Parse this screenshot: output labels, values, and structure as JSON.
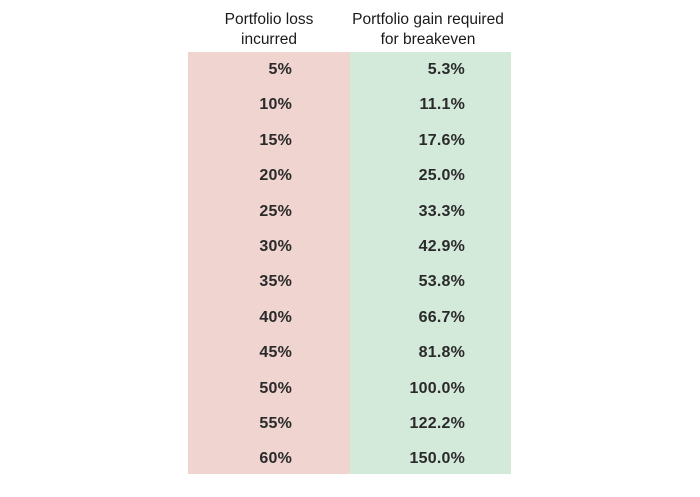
{
  "chart_data": {
    "type": "table",
    "columns": [
      "Portfolio loss incurred",
      "Portfolio gain required for breakeven"
    ],
    "header_lines": {
      "loss": [
        "Portfolio loss",
        "incurred"
      ],
      "gain": [
        "Portfolio gain required",
        "for breakeven"
      ]
    },
    "rows": [
      {
        "loss": "5%",
        "gain": "5.3%"
      },
      {
        "loss": "10%",
        "gain": "11.1%"
      },
      {
        "loss": "15%",
        "gain": "17.6%"
      },
      {
        "loss": "20%",
        "gain": "25.0%"
      },
      {
        "loss": "25%",
        "gain": "33.3%"
      },
      {
        "loss": "30%",
        "gain": "42.9%"
      },
      {
        "loss": "35%",
        "gain": "53.8%"
      },
      {
        "loss": "40%",
        "gain": "66.7%"
      },
      {
        "loss": "45%",
        "gain": "81.8%"
      },
      {
        "loss": "50%",
        "gain": "100.0%"
      },
      {
        "loss": "55%",
        "gain": "122.2%"
      },
      {
        "loss": "60%",
        "gain": "150.0%"
      }
    ],
    "colors": {
      "loss_column": "#efd4d0",
      "gain_column": "#d3eadb"
    }
  }
}
